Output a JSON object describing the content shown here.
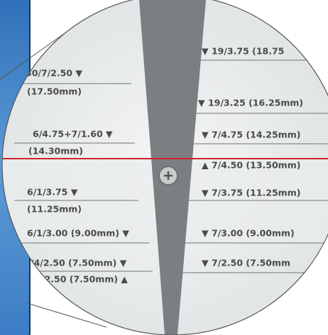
{
  "left_labels": [
    "30/7/2.50 ▼",
    "(17.50mm)",
    "6/4.75+7/1.60 ▼",
    "(14.30mm)",
    "6/1/3.75 ▼",
    "(11.25mm)",
    "6/1/3.00 (9.00mm) ▼",
    "/4/2.50 (7.50mm) ▼",
    "/2.50 (7.50mm) ▲"
  ],
  "right_labels": [
    "▼ 19/3.75 (18.75",
    "▼ 19/3.25 (16.25mm)",
    "▼ 7/4.75 (14.25mm)",
    "▲ 7/4.50 (13.50mm)",
    "▼ 7/3.75 (11.25mm)",
    "▼ 7/3.00 (9.00mm)",
    "▼ 7/2.50 (7.50mm"
  ]
}
